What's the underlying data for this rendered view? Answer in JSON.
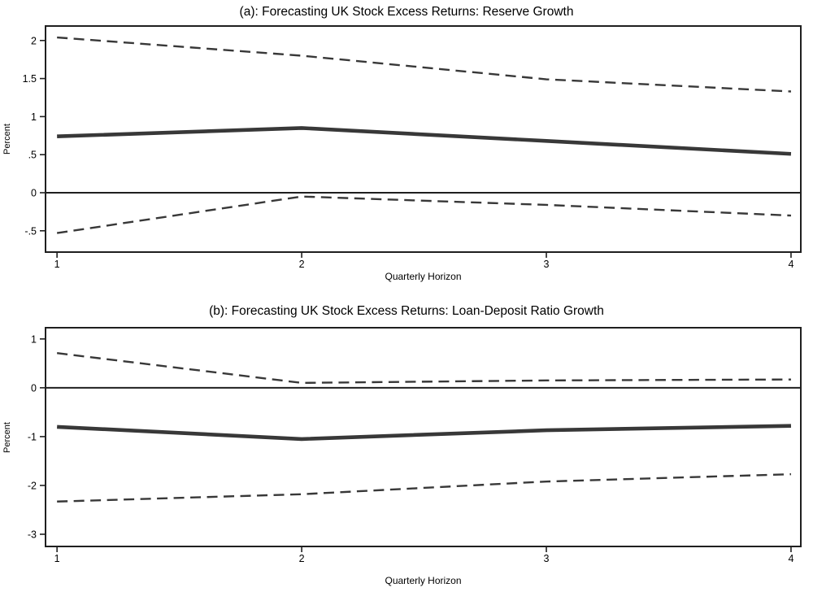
{
  "figure": {
    "background": "#ffffff"
  },
  "colors": {
    "series_line": "#383838",
    "frame": "#1f1f1f",
    "zero_line": "#1f1f1f",
    "tick": "#1f1f1f",
    "text": "#000000"
  },
  "chart_data": [
    {
      "type": "line",
      "panel": "a",
      "title": "(a): Forecasting UK Stock Excess Returns: Reserve Growth",
      "xlabel": "Quarterly Horizon",
      "ylabel": "Percent",
      "x": [
        1,
        2,
        3,
        4
      ],
      "series": [
        {
          "name": "upper-band",
          "style": "dashed",
          "values": [
            2.04,
            1.8,
            1.49,
            1.33
          ]
        },
        {
          "name": "lower-band",
          "style": "dashed",
          "values": [
            -0.53,
            -0.05,
            -0.16,
            -0.3
          ]
        },
        {
          "name": "point-estimate",
          "style": "solid",
          "values": [
            0.74,
            0.85,
            0.68,
            0.51
          ]
        }
      ],
      "xticks": [
        1,
        2,
        3,
        4
      ],
      "xtick_labels": [
        "1",
        "2",
        "3",
        "4"
      ],
      "yticks": [
        2,
        1.5,
        1,
        0.5,
        0,
        -0.5
      ],
      "ytick_labels": [
        "2",
        "1.5",
        "1",
        ".5",
        "0",
        "-.5"
      ],
      "xlim": [
        0.953,
        4.04
      ],
      "ylim": [
        -0.78,
        2.19
      ],
      "zero_line": true,
      "grid": false,
      "legend": "none"
    },
    {
      "type": "line",
      "panel": "b",
      "title": "(b): Forecasting UK Stock Excess Returns: Loan-Deposit Ratio Growth",
      "xlabel": "Quarterly Horizon",
      "ylabel": "Percent",
      "x": [
        1,
        2,
        3,
        4
      ],
      "series": [
        {
          "name": "upper-band",
          "style": "dashed",
          "values": [
            0.71,
            0.1,
            0.15,
            0.17
          ]
        },
        {
          "name": "lower-band",
          "style": "dashed",
          "values": [
            -2.33,
            -2.18,
            -1.92,
            -1.77
          ]
        },
        {
          "name": "point-estimate",
          "style": "solid",
          "values": [
            -0.8,
            -1.05,
            -0.87,
            -0.78
          ]
        }
      ],
      "xticks": [
        1,
        2,
        3,
        4
      ],
      "xtick_labels": [
        "1",
        "2",
        "3",
        "4"
      ],
      "yticks": [
        1,
        0,
        -1,
        -2,
        -3
      ],
      "ytick_labels": [
        "1",
        "0",
        "-1",
        "-2",
        "-3"
      ],
      "xlim": [
        0.953,
        4.04
      ],
      "ylim": [
        -3.25,
        1.23
      ],
      "zero_line": true,
      "grid": false,
      "legend": "none"
    }
  ]
}
